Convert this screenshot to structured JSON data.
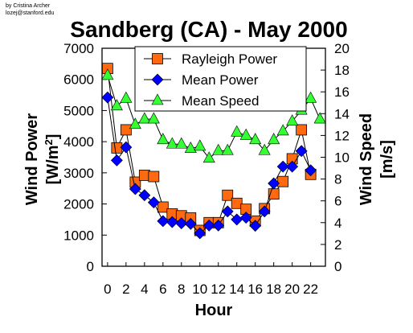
{
  "credit": {
    "line1": "by Cristina Archer",
    "line2": "lozej@stanford.edu"
  },
  "chart_data": {
    "type": "line",
    "title": "Sandberg (CA) - May 2000",
    "xlabel": "Hour",
    "ylabel_left": "Wind Power [W/m2]",
    "ylabel_left_main": "Wind Power",
    "ylabel_left_unit_prefix": "[W/m",
    "ylabel_left_unit_sup": "2",
    "ylabel_left_unit_suffix": "]",
    "ylabel_right": "Wind Speed [m/s]",
    "ylabel_right_main": "Wind Speed",
    "ylabel_right_unit": "[m/s]",
    "x": [
      0,
      1,
      2,
      3,
      4,
      5,
      6,
      7,
      8,
      9,
      10,
      11,
      12,
      13,
      14,
      15,
      16,
      17,
      18,
      19,
      20,
      21,
      22,
      23
    ],
    "xticks": [
      0,
      2,
      4,
      6,
      8,
      10,
      12,
      14,
      16,
      18,
      20,
      22
    ],
    "xtick_labels": [
      "0",
      "2",
      "4",
      "6",
      "8",
      "10",
      "12",
      "14",
      "16",
      "18",
      "20",
      "22"
    ],
    "xlim": [
      -0.6,
      23.6
    ],
    "ylim_left": [
      0,
      7000
    ],
    "yticks_left": [
      0,
      1000,
      2000,
      3000,
      4000,
      5000,
      6000,
      7000
    ],
    "ytick_labels_left": [
      "0",
      "1000",
      "2000",
      "3000",
      "4000",
      "5000",
      "6000",
      "7000"
    ],
    "ylim_right": [
      0,
      20
    ],
    "yticks_right": [
      0,
      2,
      4,
      6,
      8,
      10,
      12,
      14,
      16,
      18,
      20
    ],
    "ytick_labels_right": [
      "0",
      "2",
      "4",
      "6",
      "8",
      "10",
      "12",
      "14",
      "16",
      "18",
      "20"
    ],
    "grid": false,
    "legend_position": "top-right",
    "series": [
      {
        "name": "Rayleigh Power",
        "axis": "left",
        "marker": "square",
        "color": "#ff6a10",
        "values": [
          6350,
          3800,
          4380,
          2700,
          2920,
          2880,
          1900,
          1680,
          1620,
          1550,
          1150,
          1400,
          1400,
          2280,
          2020,
          1830,
          1450,
          1850,
          2320,
          2720,
          3450,
          4380,
          2950,
          null
        ]
      },
      {
        "name": "Mean Power",
        "axis": "left",
        "marker": "diamond",
        "color": "#0000ff",
        "values": [
          5420,
          3400,
          3820,
          2480,
          2280,
          2050,
          1450,
          1420,
          1380,
          1360,
          1060,
          1310,
          1310,
          1760,
          1500,
          1560,
          1300,
          1760,
          2660,
          3200,
          3200,
          3700,
          3080,
          null
        ]
      },
      {
        "name": "Mean Speed",
        "axis": "right",
        "marker": "triangle",
        "color": "#33ff33",
        "values": [
          17.5,
          14.7,
          15.4,
          13.0,
          13.5,
          13.5,
          11.6,
          11.2,
          11.2,
          10.8,
          11.0,
          9.9,
          10.6,
          10.6,
          12.3,
          12.0,
          11.6,
          10.6,
          11.6,
          12.4,
          13.3,
          14.3,
          15.4,
          13.5
        ]
      }
    ]
  }
}
